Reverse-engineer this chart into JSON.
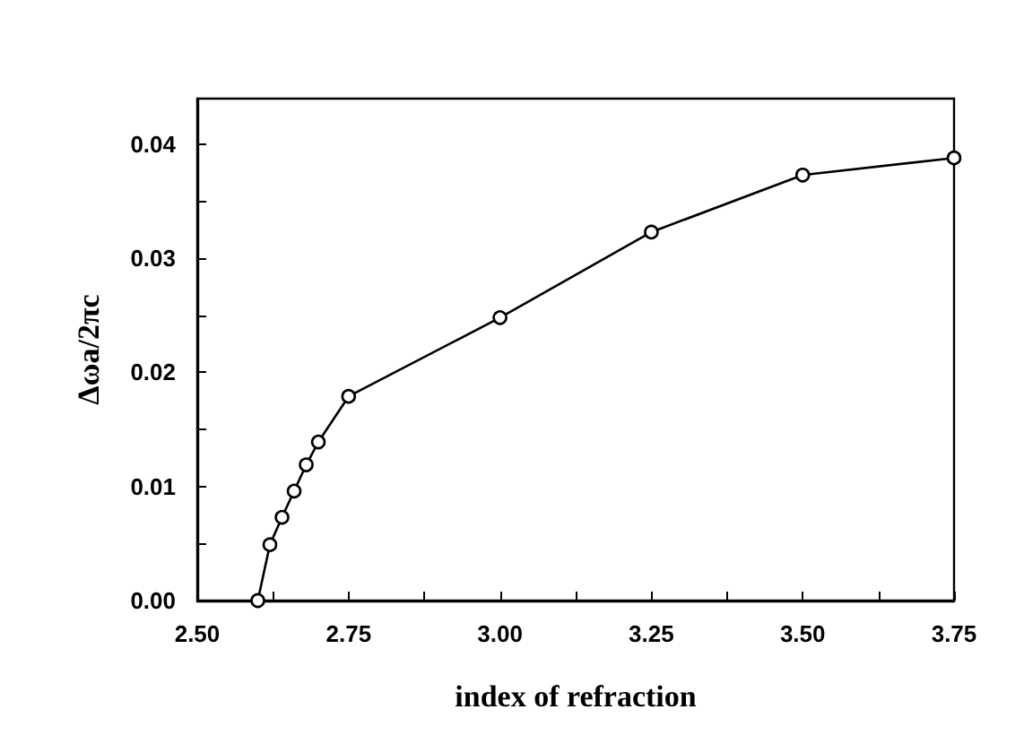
{
  "chart_data": {
    "type": "line",
    "xlabel": "index of refraction",
    "ylabel": "Δωa/2πc",
    "x": [
      2.6,
      2.62,
      2.64,
      2.66,
      2.68,
      2.7,
      2.75,
      3.0,
      3.25,
      3.5,
      3.75
    ],
    "series": [
      {
        "color": "#000000",
        "values": [
          0.0,
          0.0049,
          0.0073,
          0.0096,
          0.0119,
          0.0139,
          0.0179,
          0.0248,
          0.0323,
          0.0373,
          0.0388
        ]
      }
    ],
    "xlim": [
      2.5,
      3.75
    ],
    "ylim": [
      0,
      0.044
    ],
    "xticks": [
      {
        "value": 2.5,
        "label": "2.50"
      },
      {
        "value": 2.625,
        "label": null
      },
      {
        "value": 2.75,
        "label": "2.75"
      },
      {
        "value": 2.875,
        "label": null
      },
      {
        "value": 3.0,
        "label": "3.00"
      },
      {
        "value": 3.125,
        "label": null
      },
      {
        "value": 3.25,
        "label": "3.25"
      },
      {
        "value": 3.375,
        "label": null
      },
      {
        "value": 3.5,
        "label": "3.50"
      },
      {
        "value": 3.625,
        "label": null
      },
      {
        "value": 3.75,
        "label": "3.75"
      }
    ],
    "yticks": [
      {
        "value": 0,
        "label": "0.00"
      },
      {
        "value": 0.005,
        "label": null
      },
      {
        "value": 0.01,
        "label": "0.01"
      },
      {
        "value": 0.015,
        "label": null
      },
      {
        "value": 0.02,
        "label": "0.02"
      },
      {
        "value": 0.025,
        "label": null
      },
      {
        "value": 0.03,
        "label": "0.03"
      },
      {
        "value": 0.035,
        "label": null
      },
      {
        "value": 0.04,
        "label": "0.04"
      }
    ],
    "grid": false,
    "marker": "circle",
    "line_style": "solid"
  }
}
